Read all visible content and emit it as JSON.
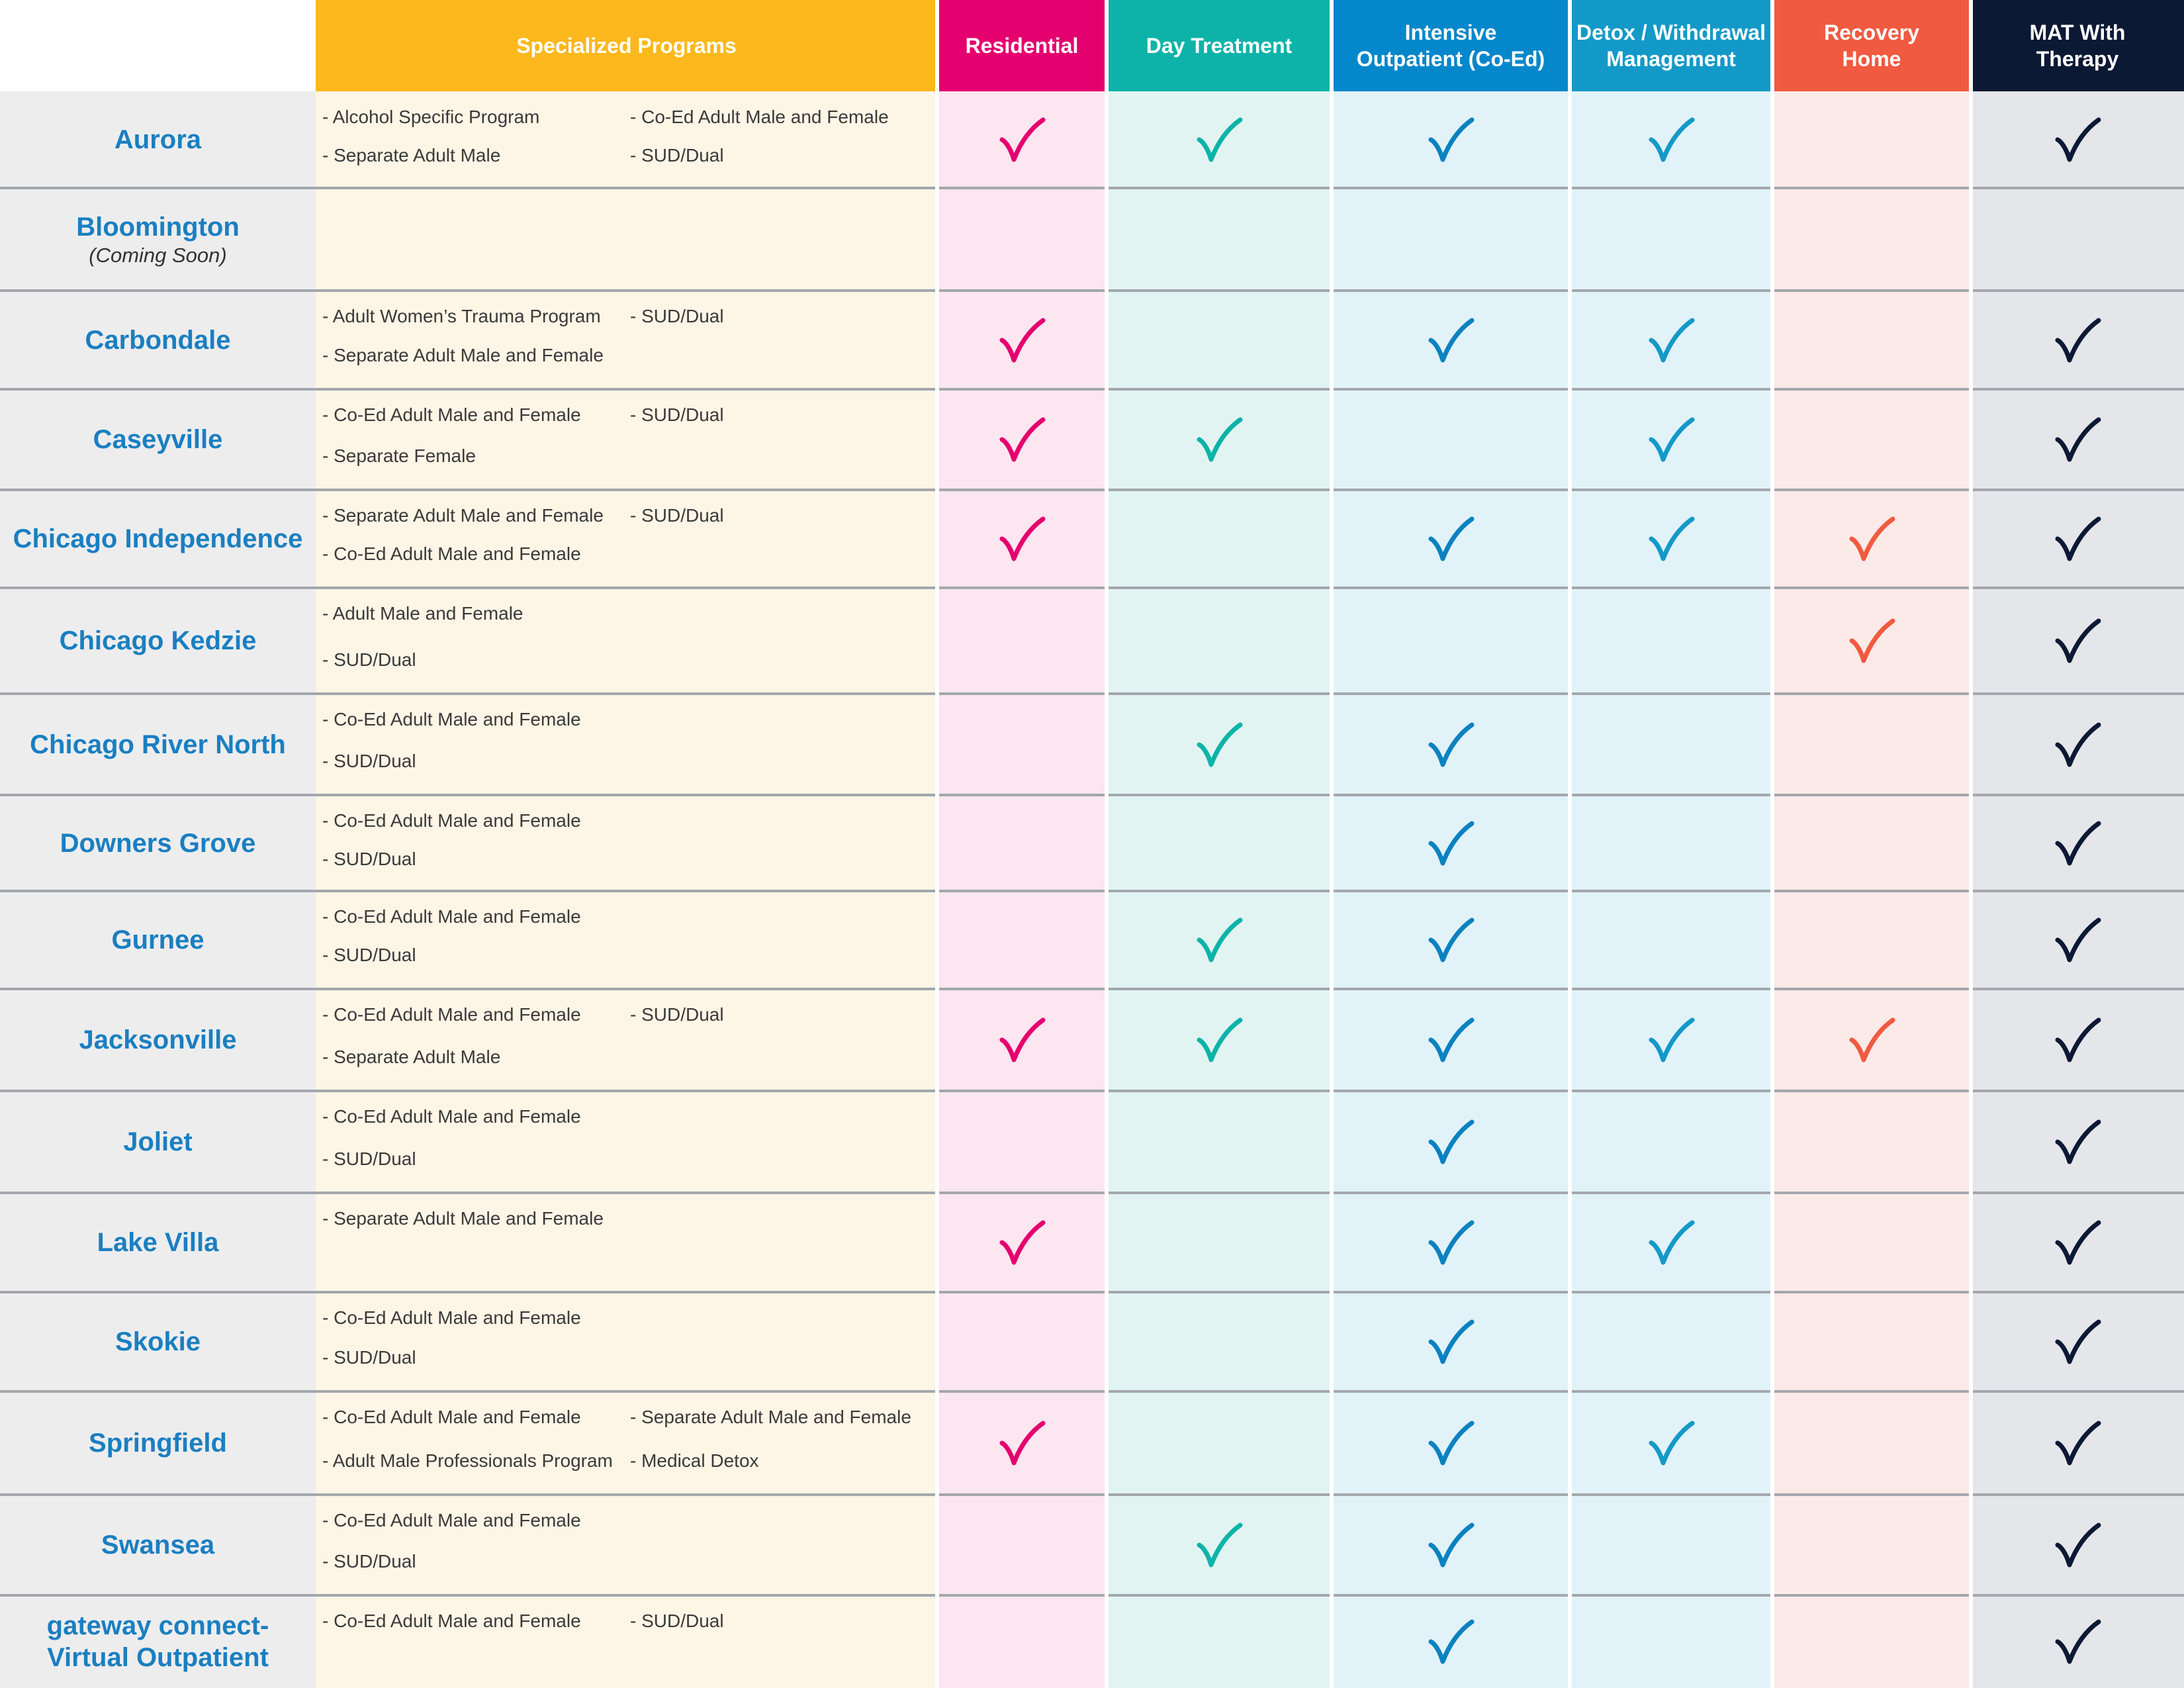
{
  "colors": {
    "header": [
      "#ffffff",
      "#fcb81c",
      "#e5006f",
      "#0db3a8",
      "#0587cb",
      "#1399c8",
      "#f05a40",
      "#0c1935"
    ],
    "cell": [
      "#ededee",
      "#fdf5e6",
      "#fce6ef",
      "#e2f4f2",
      "#e2f2f9",
      "#e2f2f9",
      "#fbeae7",
      "#e5e6e9"
    ],
    "check": [
      "",
      "",
      "#e5006f",
      "#0db3a8",
      "#0a82c0",
      "#1399c8",
      "#f05a40",
      "#0c1935"
    ],
    "location_text": "#1a7fc1",
    "program_text": "#3a3a3a",
    "row_divider": "#a3a7ac"
  },
  "icons": {
    "check": "checkmark-icon"
  },
  "columns": [
    {
      "key": "location",
      "label": ""
    },
    {
      "key": "specialized_programs",
      "label": "Specialized Programs"
    },
    {
      "key": "residential",
      "label": "Residential"
    },
    {
      "key": "day_treatment",
      "label": "Day Treatment"
    },
    {
      "key": "intensive_outpatient",
      "label": "Intensive\nOutpatient (Co-Ed)"
    },
    {
      "key": "detox",
      "label": "Detox / Withdrawal\nManagement"
    },
    {
      "key": "recovery_home",
      "label": "Recovery\nHome"
    },
    {
      "key": "mat",
      "label": "MAT With\nTherapy"
    }
  ],
  "rows": [
    {
      "location": "Aurora",
      "note": "",
      "programs": [
        "Alcohol Specific Program",
        "Co-Ed Adult Male and Female",
        "Separate Adult Male",
        "SUD/Dual"
      ],
      "services": [
        true,
        true,
        true,
        true,
        false,
        true
      ]
    },
    {
      "location": "Bloomington",
      "note": "(Coming Soon)",
      "programs": [],
      "services": [
        false,
        false,
        false,
        false,
        false,
        false
      ]
    },
    {
      "location": "Carbondale",
      "note": "",
      "programs": [
        "Adult Women’s Trauma Program",
        "SUD/Dual",
        "Separate Adult Male and Female"
      ],
      "services": [
        true,
        false,
        true,
        true,
        false,
        true
      ]
    },
    {
      "location": "Caseyville",
      "note": "",
      "programs": [
        "Co-Ed Adult Male and Female",
        "SUD/Dual",
        "Separate Female"
      ],
      "services": [
        true,
        true,
        false,
        true,
        false,
        true
      ]
    },
    {
      "location": "Chicago Independence",
      "note": "",
      "programs": [
        "Separate Adult Male and Female",
        "SUD/Dual",
        "Co-Ed Adult Male and Female"
      ],
      "services": [
        true,
        false,
        true,
        true,
        true,
        true
      ]
    },
    {
      "location": "Chicago Kedzie",
      "note": "",
      "programs": [
        "Adult Male and Female",
        "SUD/Dual"
      ],
      "services": [
        false,
        false,
        false,
        false,
        true,
        true
      ]
    },
    {
      "location": "Chicago River North",
      "note": "",
      "programs": [
        "Co-Ed Adult Male and Female",
        "SUD/Dual"
      ],
      "services": [
        false,
        true,
        true,
        false,
        false,
        true
      ]
    },
    {
      "location": "Downers Grove",
      "note": "",
      "programs": [
        "Co-Ed Adult Male and Female",
        "SUD/Dual"
      ],
      "services": [
        false,
        false,
        true,
        false,
        false,
        true
      ]
    },
    {
      "location": "Gurnee",
      "note": "",
      "programs": [
        "Co-Ed Adult Male and Female",
        "SUD/Dual"
      ],
      "services": [
        false,
        true,
        true,
        false,
        false,
        true
      ]
    },
    {
      "location": "Jacksonville",
      "note": "",
      "programs": [
        "Co-Ed Adult Male and Female",
        "SUD/Dual",
        "Separate Adult Male"
      ],
      "services": [
        true,
        true,
        true,
        true,
        true,
        true
      ]
    },
    {
      "location": "Joliet",
      "note": "",
      "programs": [
        "Co-Ed Adult Male and Female",
        "SUD/Dual"
      ],
      "services": [
        false,
        false,
        true,
        false,
        false,
        true
      ]
    },
    {
      "location": "Lake Villa",
      "note": "",
      "programs": [
        "Separate Adult Male and Female"
      ],
      "services": [
        true,
        false,
        true,
        true,
        false,
        true
      ]
    },
    {
      "location": "Skokie",
      "note": "",
      "programs": [
        "Co-Ed Adult Male and Female",
        "SUD/Dual"
      ],
      "services": [
        false,
        false,
        true,
        false,
        false,
        true
      ]
    },
    {
      "location": "Springfield",
      "note": "",
      "programs": [
        "Co-Ed Adult Male and Female",
        "Separate Adult Male and Female",
        "Adult Male Professionals Program",
        "Medical Detox"
      ],
      "services": [
        true,
        false,
        true,
        true,
        false,
        true
      ]
    },
    {
      "location": "Swansea",
      "note": "",
      "programs": [
        "Co-Ed Adult Male and Female",
        "SUD/Dual"
      ],
      "services": [
        false,
        true,
        true,
        false,
        false,
        true
      ]
    },
    {
      "location": "gateway connect-\nVirtual Outpatient",
      "note": "",
      "programs": [
        "Co-Ed Adult Male and Female",
        "SUD/Dual"
      ],
      "services": [
        false,
        false,
        true,
        false,
        false,
        true
      ]
    }
  ]
}
